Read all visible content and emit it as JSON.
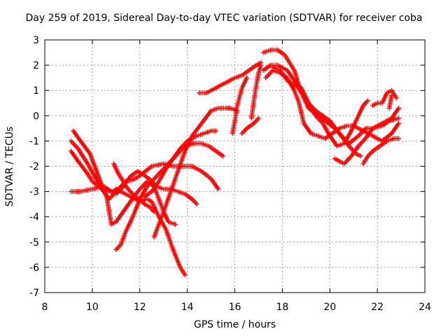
{
  "chart_data": {
    "type": "scatter",
    "title": "Day 259 of 2019, Sidereal Day-to-day VTEC variation (SDTVAR) for receiver coba",
    "xlabel": "GPS time / hours",
    "ylabel": "SDTVAR / TECUs",
    "xlim": [
      8,
      24
    ],
    "ylim": [
      -7,
      3
    ],
    "xticks": [
      8,
      10,
      12,
      14,
      16,
      18,
      20,
      22,
      24
    ],
    "yticks": [
      -7,
      -6,
      -5,
      -4,
      -3,
      -2,
      -1,
      0,
      1,
      2,
      3
    ],
    "grid": true,
    "marker": "+",
    "color": "#ff0000",
    "series": [
      {
        "name": "s1",
        "x": [
          9.1,
          9.4,
          9.8,
          10.1,
          10.4,
          10.7,
          10.9,
          11.0,
          11.2,
          11.6,
          12.0,
          12.3,
          12.5,
          12.8,
          13.1,
          13.4,
          13.7,
          13.9
        ],
        "y": [
          -1.0,
          -1.3,
          -1.9,
          -2.4,
          -2.9,
          -3.3,
          -3.1,
          -2.9,
          -3.0,
          -3.2,
          -3.4,
          -3.3,
          -3.4,
          -4.0,
          -4.5,
          -5.3,
          -6.0,
          -6.3
        ]
      },
      {
        "name": "s2",
        "x": [
          9.1,
          9.4,
          9.8,
          10.0,
          10.4,
          10.8,
          11.1,
          11.4,
          11.8,
          12.1,
          12.5,
          13.0,
          13.4,
          13.8,
          14.2,
          14.6,
          15.0,
          15.3
        ],
        "y": [
          -1.4,
          -1.8,
          -2.3,
          -2.6,
          -2.9,
          -3.0,
          -2.9,
          -2.6,
          -2.5,
          -2.3,
          -2.0,
          -1.9,
          -2.0,
          -2.0,
          -2.0,
          -2.2,
          -2.5,
          -2.9
        ]
      },
      {
        "name": "s3",
        "x": [
          9.1,
          9.5,
          10.0,
          10.5,
          10.8,
          11.0,
          11.3,
          11.6,
          11.9,
          12.1,
          12.4,
          12.7,
          13.0,
          13.3,
          13.6,
          13.9,
          14.2,
          14.4
        ],
        "y": [
          -3.0,
          -3.0,
          -2.9,
          -2.8,
          -3.0,
          -3.1,
          -2.8,
          -2.4,
          -2.2,
          -2.3,
          -2.5,
          -2.8,
          -2.9,
          -2.9,
          -3.0,
          -3.1,
          -3.3,
          -3.5
        ]
      },
      {
        "name": "s4",
        "x": [
          9.2,
          9.5,
          9.9,
          10.3,
          10.6,
          10.8,
          11.0,
          11.3,
          11.6,
          12.0,
          12.3,
          12.6,
          12.8,
          13.0,
          13.2,
          13.5
        ],
        "y": [
          -0.6,
          -1.0,
          -1.5,
          -2.5,
          -3.2,
          -4.3,
          -4.2,
          -3.8,
          -3.4,
          -2.9,
          -2.6,
          -2.8,
          -3.3,
          -3.8,
          -4.2,
          -4.3
        ]
      },
      {
        "name": "s5",
        "x": [
          10.9,
          11.1,
          11.3,
          11.5,
          11.8,
          12.0,
          12.2,
          12.4,
          12.6
        ],
        "y": [
          -1.9,
          -2.3,
          -2.6,
          -2.9,
          -3.2,
          -3.3,
          -3.5,
          -3.6,
          -3.8
        ]
      },
      {
        "name": "s6",
        "x": [
          11.0,
          11.2,
          11.4,
          11.7,
          12.0,
          12.3,
          12.6,
          12.9,
          13.2,
          13.5,
          13.8,
          14.2,
          14.6,
          14.9,
          15.2,
          15.5
        ],
        "y": [
          -5.3,
          -5.1,
          -4.6,
          -4.0,
          -3.3,
          -2.8,
          -2.5,
          -2.2,
          -1.9,
          -1.6,
          -1.3,
          -1.1,
          -1.1,
          -1.2,
          -1.4,
          -1.6
        ]
      },
      {
        "name": "s7",
        "x": [
          12.6,
          12.8,
          13.0,
          13.3,
          13.6,
          13.9,
          14.2,
          14.6,
          15.0,
          15.3,
          15.6,
          15.8,
          16.1
        ],
        "y": [
          -4.8,
          -4.3,
          -3.8,
          -3.0,
          -2.2,
          -1.4,
          -0.8,
          -0.3,
          0.2,
          0.3,
          0.3,
          0.3,
          0.2
        ]
      },
      {
        "name": "s8",
        "x": [
          12.2,
          12.5,
          12.8,
          13.1,
          13.4,
          13.7,
          14.0,
          14.4,
          14.7,
          15.0,
          15.2
        ],
        "y": [
          -3.2,
          -3.0,
          -2.6,
          -2.1,
          -1.7,
          -1.3,
          -1.0,
          -0.8,
          -0.7,
          -0.6,
          -0.6
        ]
      },
      {
        "name": "s9",
        "x": [
          14.5,
          14.8,
          15.2,
          15.6,
          16.0,
          16.3,
          16.6,
          16.9,
          17.1
        ],
        "y": [
          0.9,
          0.9,
          1.1,
          1.3,
          1.5,
          1.6,
          1.8,
          2.0,
          2.1
        ]
      },
      {
        "name": "s10",
        "x": [
          15.9,
          16.0,
          16.1,
          16.3,
          16.5
        ],
        "y": [
          -0.7,
          -0.2,
          0.4,
          1.1,
          1.5
        ]
      },
      {
        "name": "s11",
        "x": [
          16.7,
          16.8,
          16.9,
          17.0,
          17.1
        ],
        "y": [
          -0.1,
          0.6,
          1.2,
          1.7,
          2.0
        ]
      },
      {
        "name": "s12",
        "x": [
          16.3,
          16.5,
          16.8,
          17.0
        ],
        "y": [
          -0.7,
          -0.5,
          -0.3,
          -0.1
        ]
      },
      {
        "name": "s13",
        "x": [
          17.2,
          17.5,
          17.8,
          18.1,
          18.3,
          18.5,
          18.7,
          18.9,
          19.1,
          19.4,
          19.7,
          20.0,
          20.4,
          20.8,
          21.1,
          21.3
        ],
        "y": [
          2.5,
          2.6,
          2.6,
          2.4,
          2.1,
          1.8,
          1.2,
          0.8,
          0.5,
          0.2,
          0.0,
          -0.2,
          -0.7,
          -1.2,
          -1.5,
          -1.6
        ]
      },
      {
        "name": "s14",
        "x": [
          17.2,
          17.5,
          17.8,
          18.2,
          18.5,
          18.8,
          19.1,
          19.5,
          19.8,
          20.2,
          20.5,
          20.8,
          21.2,
          21.5,
          21.8,
          22.2,
          22.6,
          22.9
        ],
        "y": [
          1.8,
          2.0,
          2.0,
          1.8,
          1.4,
          0.9,
          0.3,
          0.0,
          -0.2,
          -0.5,
          -0.8,
          -1.1,
          -0.8,
          -0.5,
          -0.5,
          -0.3,
          -0.1,
          0.3
        ]
      },
      {
        "name": "s15",
        "x": [
          17.3,
          17.6,
          17.9,
          18.2,
          18.5,
          18.7,
          18.9,
          19.2,
          19.5,
          19.8,
          20.1,
          20.4,
          20.7,
          21.0,
          21.4,
          21.8,
          22.2,
          22.6,
          22.9
        ],
        "y": [
          1.5,
          1.8,
          1.7,
          1.5,
          1.0,
          0.5,
          -0.3,
          -0.7,
          -0.8,
          -0.9,
          -0.7,
          -0.5,
          -0.4,
          -0.4,
          -0.6,
          -0.8,
          -1.0,
          -0.7,
          -0.3
        ]
      },
      {
        "name": "s16",
        "x": [
          17.6,
          17.9,
          18.2,
          18.5,
          18.8,
          19.1,
          19.4,
          19.7,
          20.0,
          20.3,
          20.6,
          20.9,
          21.2,
          21.4,
          21.6
        ],
        "y": [
          1.9,
          1.8,
          1.4,
          1.2,
          1.1,
          0.5,
          0.0,
          -0.3,
          -0.8,
          -1.2,
          -1.1,
          -0.6,
          0.0,
          0.4,
          0.6
        ]
      },
      {
        "name": "s17",
        "x": [
          20.2,
          20.4,
          20.6,
          20.9,
          21.2,
          21.5,
          21.8,
          22.2,
          22.5,
          22.9
        ],
        "y": [
          -1.7,
          -1.8,
          -1.9,
          -1.6,
          -1.2,
          -0.9,
          -0.5,
          -0.4,
          -0.2,
          -0.1
        ]
      },
      {
        "name": "s18",
        "x": [
          21.4,
          21.6,
          21.8,
          22.1,
          22.4,
          22.7,
          22.9
        ],
        "y": [
          -1.9,
          -1.6,
          -1.4,
          -1.2,
          -1.0,
          -0.9,
          -0.9
        ]
      },
      {
        "name": "s19",
        "x": [
          21.8,
          22.0,
          22.2,
          22.4,
          22.6,
          22.8
        ],
        "y": [
          0.4,
          0.5,
          0.5,
          0.9,
          1.0,
          0.7
        ]
      },
      {
        "name": "s20",
        "x": [
          22.5,
          22.6
        ],
        "y": [
          0.3,
          0.8
        ]
      }
    ]
  }
}
